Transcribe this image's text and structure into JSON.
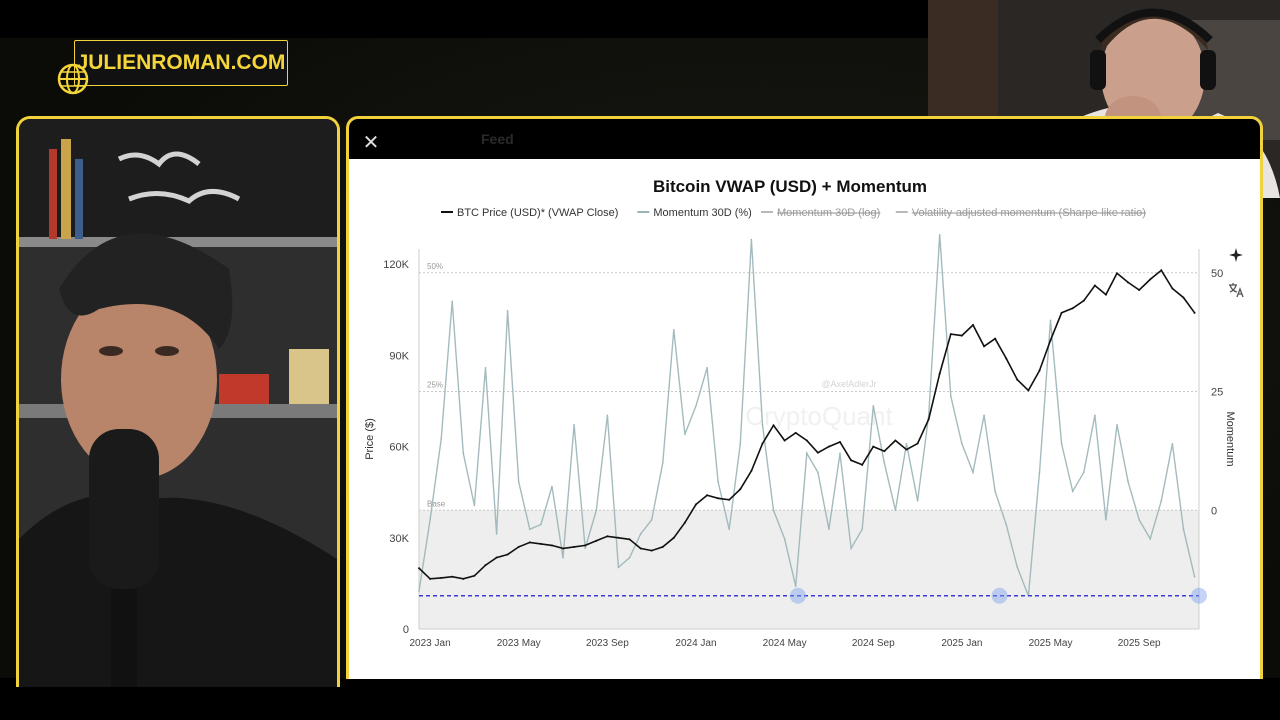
{
  "logo": {
    "text": "JULIENROMAN.COM",
    "icon": "globe-icon",
    "color": "#f5d63a"
  },
  "header": {
    "close_label": "✕",
    "tab_label": "Feed"
  },
  "chart_data": {
    "type": "line",
    "title": "Bitcoin VWAP (USD) + Momentum",
    "legend": [
      {
        "label": "BTC Price (USD)* (VWAP Close)",
        "color": "#111111",
        "struck": false
      },
      {
        "label": "Momentum 30D (%)",
        "color": "#9ab4b6",
        "struck": false
      },
      {
        "label": "Momentum 30D (log)",
        "color": "#b9b9b9",
        "struck": true
      },
      {
        "label": "Volatility-adjusted momentum (Sharpe-like ratio)",
        "color": "#b9b9b9",
        "struck": true
      }
    ],
    "legend_position": "top",
    "ylabel": "Price ($)",
    "ylabel_right": "Momentum",
    "ylim": [
      0,
      125000
    ],
    "y_ticks": [
      "0",
      "30K",
      "60K",
      "90K",
      "120K"
    ],
    "y_tick_values": [
      0,
      30000,
      60000,
      90000,
      120000
    ],
    "y2_ticks": [
      "0",
      "25",
      "50"
    ],
    "y2_tick_values": [
      0,
      25,
      50
    ],
    "y2lim": [
      -25,
      55
    ],
    "x_ticks": [
      "2023 Jan",
      "2023 May",
      "2023 Sep",
      "2024 Jan",
      "2024 May",
      "2024 Sep",
      "2025 Jan",
      "2025 May",
      "2025 Sep"
    ],
    "x_tick_months": [
      0,
      4,
      8,
      12,
      16,
      20,
      24,
      28,
      32
    ],
    "xlim_months": [
      -0.5,
      34.7
    ],
    "ref_lines": [
      {
        "label": "50%",
        "value": 50
      },
      {
        "label": "25%",
        "value": 25
      },
      {
        "label": "Base",
        "value": 0
      }
    ],
    "threshold_line": {
      "value": -18,
      "color": "#3b3bd6"
    },
    "threshold_markers_month": [
      16.6,
      25.7,
      34.7
    ],
    "watermark": "CryptoQuant",
    "author_tag": "@AxelAdlerJr",
    "series": [
      {
        "name": "BTC Price (USD)* (VWAP Close)",
        "color": "#111111",
        "months": [
          -0.5,
          0,
          0.5,
          1,
          1.5,
          2,
          2.5,
          3,
          3.5,
          4,
          4.5,
          5,
          5.5,
          6,
          6.5,
          7,
          7.5,
          8,
          8.5,
          9,
          9.5,
          10,
          10.5,
          11,
          11.5,
          12,
          12.5,
          13,
          13.5,
          14,
          14.5,
          15,
          15.5,
          16,
          16.5,
          17,
          17.5,
          18,
          18.5,
          19,
          19.5,
          20,
          20.5,
          21,
          21.5,
          22,
          22.5,
          23,
          23.5,
          24,
          24.5,
          25,
          25.5,
          26,
          26.5,
          27,
          27.5,
          28,
          28.5,
          29,
          29.5,
          30,
          30.5,
          31,
          31.5,
          32,
          32.5,
          33,
          33.5,
          34,
          34.5
        ],
        "values": [
          20000,
          16500,
          16800,
          17200,
          16500,
          17500,
          21000,
          23500,
          24500,
          27000,
          28500,
          28000,
          27500,
          26500,
          27000,
          27500,
          29000,
          30500,
          30000,
          29500,
          26500,
          25800,
          27000,
          30000,
          35000,
          41000,
          44000,
          43000,
          42500,
          46000,
          52000,
          61000,
          67000,
          62000,
          64500,
          62000,
          58000,
          60000,
          61500,
          55500,
          54000,
          60000,
          58500,
          62000,
          59000,
          61000,
          69000,
          84000,
          97000,
          96500,
          100000,
          93000,
          95500,
          89000,
          82000,
          78500,
          85000,
          95000,
          104000,
          105500,
          108000,
          113000,
          110000,
          117000,
          114000,
          111500,
          115000,
          118000,
          112000,
          109000,
          104000
        ]
      },
      {
        "name": "Momentum 30D (%)",
        "color": "#9ab4b6",
        "months": [
          -0.5,
          0,
          0.5,
          1,
          1.5,
          2,
          2.5,
          3,
          3.5,
          4,
          4.5,
          5,
          5.5,
          6,
          6.5,
          7,
          7.5,
          8,
          8.5,
          9,
          9.5,
          10,
          10.5,
          11,
          11.5,
          12,
          12.5,
          13,
          13.5,
          14,
          14.5,
          15,
          15.5,
          16,
          16.5,
          17,
          17.5,
          18,
          18.5,
          19,
          19.5,
          20,
          20.5,
          21,
          21.5,
          22,
          22.5,
          23,
          23.5,
          24,
          24.5,
          25,
          25.5,
          26,
          26.5,
          27,
          27.5,
          28,
          28.5,
          29,
          29.5,
          30,
          30.5,
          31,
          31.5,
          32,
          32.5,
          33,
          33.5,
          34,
          34.5
        ],
        "values": [
          -17,
          -2,
          15,
          44,
          12,
          1,
          30,
          -5,
          42,
          6,
          -4,
          -3,
          5,
          -10,
          18,
          -8,
          0,
          20,
          -12,
          -10,
          -5,
          -2,
          10,
          38,
          16,
          22,
          30,
          6,
          -4,
          14,
          57,
          18,
          0,
          -6,
          -16,
          12,
          8,
          -4,
          12,
          -8,
          -4,
          22,
          10,
          0,
          14,
          2,
          20,
          58,
          24,
          14,
          8,
          20,
          4,
          -3,
          -12,
          -18,
          8,
          40,
          14,
          4,
          8,
          20,
          -2,
          18,
          6,
          -2,
          -6,
          2,
          14,
          -4,
          -14
        ]
      }
    ]
  }
}
